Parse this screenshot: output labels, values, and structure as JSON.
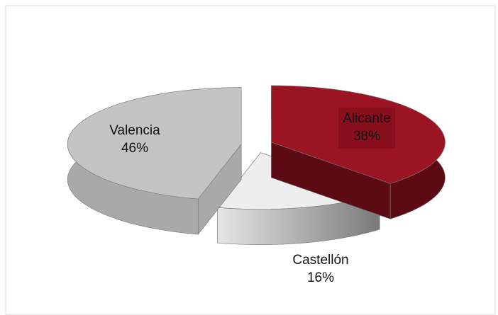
{
  "chart_data": {
    "type": "pie3d",
    "categories": [
      "Alicante",
      "Castellón",
      "Valencia"
    ],
    "values": [
      38,
      16,
      46
    ],
    "value_labels": [
      "38%",
      "16%",
      "46%"
    ],
    "colors": [
      "#9b1424",
      "#eeeeee",
      "#c4c4c4"
    ]
  }
}
